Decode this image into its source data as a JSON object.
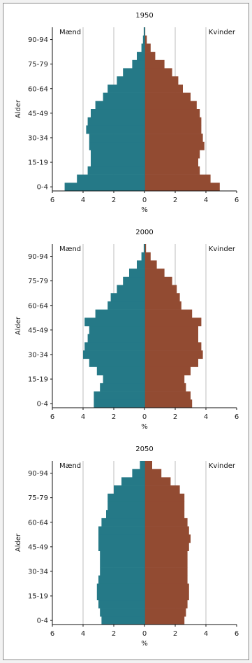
{
  "colors": {
    "men": "#257987",
    "women": "#924b32",
    "grid": "#bdbdbd",
    "axis": "#111111"
  },
  "chart_data": [
    {
      "type": "bar",
      "orientation": "horizontal-population-pyramid",
      "title": "1950",
      "ylabel": "Alder",
      "xlabel": "%",
      "xlim": [
        -6,
        6
      ],
      "x_tick_labels": [
        "6",
        "4",
        "2",
        "0",
        "2",
        "4",
        "6"
      ],
      "men_label": "Mænd",
      "women_label": "Kvinder",
      "categories": [
        "0-4",
        "5-9",
        "10-14",
        "15-19",
        "20-24",
        "25-29",
        "30-34",
        "35-39",
        "40-44",
        "45-49",
        "50-54",
        "55-59",
        "60-64",
        "65-69",
        "70-74",
        "75-79",
        "80-84",
        "85-89",
        "90-94",
        "95+"
      ],
      "y_tick_labels": [
        "0-4",
        "15-19",
        "30-34",
        "45-49",
        "60-64",
        "75-79",
        "90-94"
      ],
      "series": [
        {
          "name": "Mænd",
          "values": [
            5.2,
            4.4,
            3.7,
            3.5,
            3.5,
            3.6,
            3.6,
            3.8,
            3.7,
            3.5,
            3.2,
            2.7,
            2.4,
            1.8,
            1.4,
            0.8,
            0.5,
            0.2,
            0.1,
            0.05
          ]
        },
        {
          "name": "Kvinder",
          "values": [
            4.9,
            4.3,
            3.6,
            3.5,
            3.6,
            3.9,
            3.8,
            3.7,
            3.7,
            3.6,
            3.4,
            3.0,
            2.5,
            2.2,
            1.8,
            1.3,
            0.7,
            0.4,
            0.15,
            0.05
          ]
        }
      ]
    },
    {
      "type": "bar",
      "orientation": "horizontal-population-pyramid",
      "title": "2000",
      "ylabel": "Alder",
      "xlabel": "%",
      "xlim": [
        -6,
        6
      ],
      "x_tick_labels": [
        "6",
        "4",
        "2",
        "0",
        "2",
        "4",
        "6"
      ],
      "men_label": "Mænd",
      "women_label": "Kvinder",
      "categories": [
        "0-4",
        "5-9",
        "10-14",
        "15-19",
        "20-24",
        "25-29",
        "30-34",
        "35-39",
        "40-44",
        "45-49",
        "50-54",
        "55-59",
        "60-64",
        "65-69",
        "70-74",
        "75-79",
        "80-84",
        "85-89",
        "90-94",
        "95+"
      ],
      "y_tick_labels": [
        "0-4",
        "15-19",
        "30-34",
        "45-49",
        "60-64",
        "75-79",
        "90-94"
      ],
      "series": [
        {
          "name": "Mænd",
          "values": [
            3.3,
            3.3,
            2.9,
            2.7,
            3.1,
            3.6,
            4.0,
            3.9,
            3.7,
            3.6,
            3.9,
            3.2,
            2.4,
            2.2,
            1.8,
            1.4,
            1.0,
            0.5,
            0.2,
            0.05
          ]
        },
        {
          "name": "Kvinder",
          "values": [
            3.1,
            3.0,
            2.7,
            2.6,
            3.0,
            3.5,
            3.8,
            3.7,
            3.5,
            3.5,
            3.7,
            3.1,
            2.4,
            2.3,
            2.1,
            1.8,
            1.3,
            0.8,
            0.4,
            0.1
          ]
        }
      ]
    },
    {
      "type": "bar",
      "orientation": "horizontal-population-pyramid",
      "title": "2050",
      "ylabel": "Alder",
      "xlabel": "%",
      "xlim": [
        -6,
        6
      ],
      "x_tick_labels": [
        "6",
        "4",
        "2",
        "0",
        "2",
        "4",
        "6"
      ],
      "men_label": "Mænd",
      "women_label": "Kvinder",
      "categories": [
        "0-4",
        "5-9",
        "10-14",
        "15-19",
        "20-24",
        "25-29",
        "30-34",
        "35-39",
        "40-44",
        "45-49",
        "50-54",
        "55-59",
        "60-64",
        "65-69",
        "70-74",
        "75-79",
        "80-84",
        "85-89",
        "90-94",
        "95+"
      ],
      "y_tick_labels": [
        "0-4",
        "15-19",
        "30-34",
        "45-49",
        "60-64",
        "75-79",
        "90-94"
      ],
      "series": [
        {
          "name": "Mænd",
          "values": [
            2.8,
            2.9,
            3.0,
            3.1,
            3.1,
            3.0,
            2.9,
            2.9,
            2.9,
            3.0,
            3.0,
            3.0,
            2.8,
            2.5,
            2.4,
            2.4,
            2.0,
            1.5,
            0.8,
            0.3
          ]
        },
        {
          "name": "Kvinder",
          "values": [
            2.6,
            2.7,
            2.8,
            2.9,
            2.9,
            2.8,
            2.8,
            2.8,
            2.8,
            2.9,
            3.0,
            2.9,
            2.8,
            2.6,
            2.6,
            2.6,
            2.3,
            1.7,
            1.1,
            0.5
          ]
        }
      ]
    }
  ]
}
